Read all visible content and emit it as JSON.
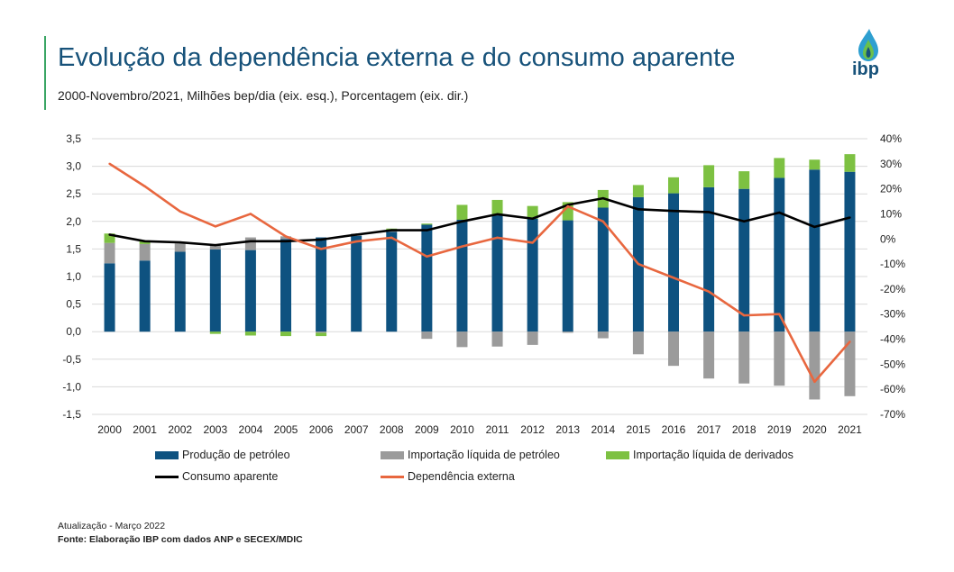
{
  "header": {
    "title": "Evolução da dependência externa e do consumo aparente",
    "subtitle": "2000-Novembro/2021, Milhões bep/dia (eix. esq.), Porcentagem (eix. dir.)"
  },
  "logo": {
    "text": "ibp",
    "colors": {
      "drop_dark": "#17527a",
      "drop_light": "#6bc04b",
      "drop_mid": "#2e9fd0"
    }
  },
  "footer": {
    "updated": "Atualização - Março 2022",
    "source": "Fonte: Elaboração IBP com dados ANP e SECEX/MDIC"
  },
  "colors": {
    "producao": "#0e5280",
    "imp_petroleo": "#9b9b9b",
    "imp_derivados": "#7dc142",
    "consumo": "#000000",
    "dependencia": "#e8673f",
    "grid": "#d9d9d9"
  },
  "chart_data": {
    "type": "bar",
    "categories": [
      "2000",
      "2001",
      "2002",
      "2003",
      "2004",
      "2005",
      "2006",
      "2007",
      "2008",
      "2009",
      "2010",
      "2011",
      "2012",
      "2013",
      "2014",
      "2015",
      "2016",
      "2017",
      "2018",
      "2019",
      "2020",
      "2021"
    ],
    "y_left": {
      "min": -1.5,
      "max": 3.5,
      "ticks": [
        "-1,5",
        "-1,0",
        "-0,5",
        "0,0",
        "0,5",
        "1,0",
        "1,5",
        "2,0",
        "2,5",
        "3,0",
        "3,5"
      ]
    },
    "y_right": {
      "min": -70,
      "max": 40,
      "ticks": [
        "-70%",
        "-60%",
        "-50%",
        "-40%",
        "-30%",
        "-20%",
        "-10%",
        "0%",
        "10%",
        "20%",
        "30%",
        "40%"
      ]
    },
    "series": [
      {
        "name": "Produção de petróleo",
        "kind": "bar",
        "axis": "left",
        "values": [
          1.24,
          1.29,
          1.45,
          1.49,
          1.48,
          1.68,
          1.71,
          1.74,
          1.81,
          1.94,
          2.03,
          2.11,
          2.05,
          2.02,
          2.25,
          2.44,
          2.51,
          2.62,
          2.59,
          2.79,
          2.94,
          2.9
        ]
      },
      {
        "name": "Importação líquida de petróleo",
        "kind": "bar",
        "axis": "left",
        "values": [
          0.37,
          0.3,
          0.15,
          0.08,
          0.23,
          0.05,
          -0.02,
          0.04,
          0.04,
          -0.13,
          -0.28,
          -0.27,
          -0.24,
          -0.02,
          -0.12,
          -0.41,
          -0.62,
          -0.85,
          -0.94,
          -0.98,
          -1.23,
          -1.17
        ]
      },
      {
        "name": "Importação líquida de derivados",
        "kind": "bar",
        "axis": "left",
        "values": [
          0.17,
          0.05,
          0.0,
          -0.04,
          -0.07,
          -0.08,
          -0.06,
          0.0,
          0.02,
          0.02,
          0.27,
          0.28,
          0.23,
          0.33,
          0.32,
          0.22,
          0.29,
          0.4,
          0.32,
          0.36,
          0.18,
          0.32
        ]
      },
      {
        "name": "Consumo aparente",
        "kind": "line",
        "axis": "left",
        "values": [
          1.76,
          1.64,
          1.62,
          1.57,
          1.64,
          1.64,
          1.67,
          1.76,
          1.84,
          1.84,
          2.0,
          2.13,
          2.05,
          2.3,
          2.42,
          2.22,
          2.19,
          2.17,
          2.0,
          2.16,
          1.9,
          2.07
        ]
      },
      {
        "name": "Dependência externa",
        "kind": "line",
        "axis": "right",
        "values": [
          30,
          21,
          11,
          5,
          10,
          1,
          -4,
          -1,
          0.5,
          -7,
          -3,
          0.5,
          -1.5,
          13,
          7,
          -10,
          -15.5,
          -21,
          -30.5,
          -30,
          -57,
          -41
        ]
      }
    ],
    "legend": [
      "Produção de petróleo",
      "Importação líquida de petróleo",
      "Importação líquida de derivados",
      "Consumo aparente",
      "Dependência externa"
    ],
    "legend_position": "bottom",
    "grid": true
  }
}
